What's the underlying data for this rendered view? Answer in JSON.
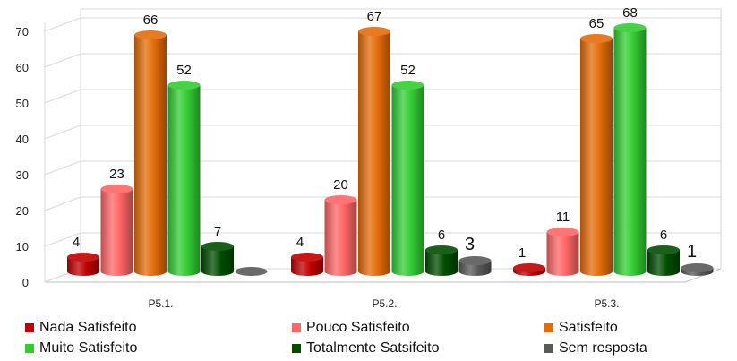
{
  "chart_data": {
    "type": "bar",
    "categories": [
      "P5.1.",
      "P5.2.",
      "P5.3."
    ],
    "series": [
      {
        "name": "Nada Satisfeito",
        "color": "#c00000",
        "values": [
          4,
          4,
          1
        ]
      },
      {
        "name": "Pouco Satisfeito",
        "color": "#ff6666",
        "values": [
          23,
          20,
          11
        ]
      },
      {
        "name": "Satisfeito",
        "color": "#e46c0a",
        "values": [
          66,
          67,
          65
        ]
      },
      {
        "name": "Muito Satisfeito",
        "color": "#33cc33",
        "values": [
          52,
          52,
          68
        ]
      },
      {
        "name": "Totalmente Satsifeito",
        "color": "#004d00",
        "values": [
          7,
          6,
          6
        ]
      },
      {
        "name": "Sem resposta",
        "color": "#595959",
        "values": [
          0,
          3,
          1
        ]
      }
    ],
    "data_labels": [
      [
        "4",
        "23",
        "66",
        "52",
        "7",
        ""
      ],
      [
        "4",
        "20",
        "67",
        "52",
        "6",
        "3"
      ],
      [
        "1",
        "11",
        "65",
        "68",
        "6",
        "1"
      ]
    ],
    "yticks": [
      "0",
      "10",
      "20",
      "30",
      "40",
      "50",
      "60",
      "70"
    ],
    "ylim": [
      0,
      70
    ],
    "grid": true,
    "legend_position": "bottom"
  }
}
